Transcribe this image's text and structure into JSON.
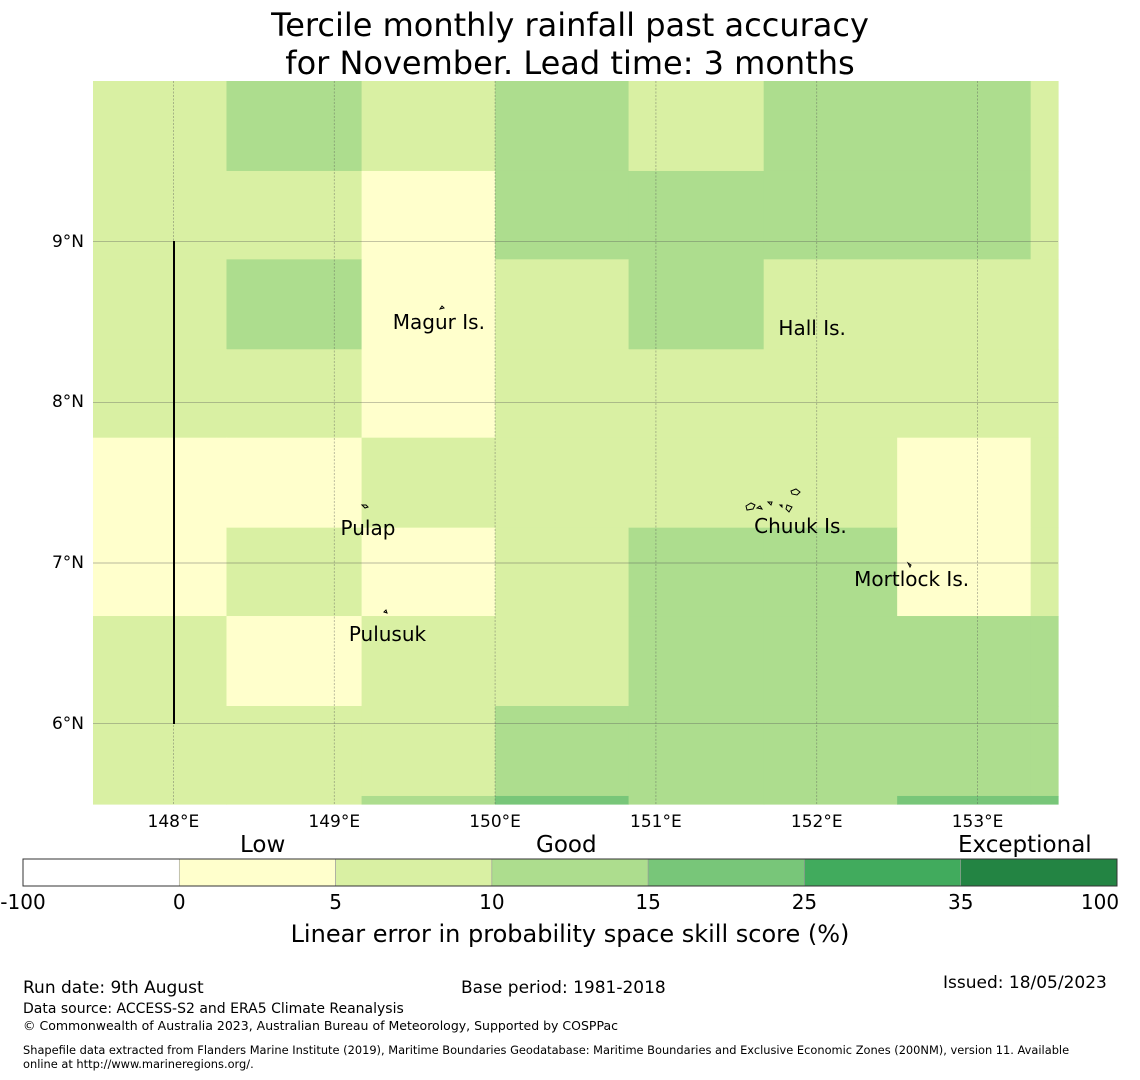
{
  "title": {
    "line1": "Tercile monthly rainfall past accuracy",
    "line2": "for November. Lead time: 3 months"
  },
  "map": {
    "lon_range": [
      147.5,
      153.5
    ],
    "lat_range": [
      5.5,
      10.0
    ],
    "lon_ticks": [
      "148°E",
      "149°E",
      "150°E",
      "151°E",
      "152°E",
      "153°E"
    ],
    "lat_ticks": [
      "9°N",
      "8°N",
      "7°N",
      "6°N"
    ],
    "grid": true,
    "places": [
      {
        "name": "Magur Is.",
        "lon": 149.65,
        "lat": 8.5
      },
      {
        "name": "Hall Is.",
        "lon": 151.97,
        "lat": 8.46
      },
      {
        "name": "Pulap",
        "lon": 149.21,
        "lat": 7.22
      },
      {
        "name": "Chuuk Is.",
        "lon": 151.9,
        "lat": 7.23
      },
      {
        "name": "Mortlock Is.",
        "lon": 152.59,
        "lat": 6.9
      },
      {
        "name": "Pulusuk",
        "lon": 149.33,
        "lat": 6.56
      }
    ],
    "skill_grid": {
      "lon_edges": [
        147.5,
        148.33,
        149.17,
        150.0,
        150.83,
        151.67,
        152.5,
        153.33,
        153.5
      ],
      "lat_edges": [
        10.0,
        9.44,
        8.89,
        8.33,
        7.78,
        7.22,
        6.67,
        6.11,
        5.55,
        5.5
      ],
      "categories": [
        [
          2,
          3,
          2,
          3,
          2,
          3,
          3,
          2
        ],
        [
          2,
          2,
          1,
          3,
          3,
          3,
          3,
          2
        ],
        [
          2,
          3,
          1,
          2,
          3,
          2,
          2,
          2
        ],
        [
          2,
          2,
          1,
          2,
          2,
          2,
          2,
          2
        ],
        [
          1,
          1,
          2,
          2,
          2,
          2,
          1,
          2
        ],
        [
          1,
          2,
          1,
          2,
          3,
          3,
          1,
          2
        ],
        [
          2,
          1,
          2,
          2,
          3,
          3,
          3,
          3
        ],
        [
          2,
          2,
          2,
          3,
          3,
          3,
          3,
          3
        ],
        [
          2,
          2,
          3,
          4,
          3,
          3,
          4,
          4
        ]
      ]
    }
  },
  "colorbar": {
    "categories": [
      "Low",
      "Good",
      "Exceptional"
    ],
    "ticks": [
      "-100",
      "0",
      "5",
      "10",
      "15",
      "25",
      "35",
      "100"
    ],
    "colors": [
      "#ffffff",
      "#ffffcc",
      "#d9f0a3",
      "#addd8e",
      "#78c679",
      "#41ab5d",
      "#238443"
    ],
    "label": "Linear error in probability space skill score (%)"
  },
  "footer": {
    "run_date": "Run date: 9th August",
    "base_period": "Base period: 1981-2018",
    "issued": "Issued: 18/05/2023",
    "data_source": "Data source: ACCESS-S2 and ERA5 Climate Reanalysis",
    "copyright": "© Commonwealth of Australia 2023, Australian Bureau of Meteorology, Supported by COSPPac",
    "shapefile_line1": "Shapefile data extracted from Flanders Marine Institute (2019), Maritime Boundaries Geodatabase: Maritime Boundaries and Exclusive Economic Zones (200NM), version 11. Available",
    "shapefile_line2": "online at http://www.marineregions.org/."
  }
}
